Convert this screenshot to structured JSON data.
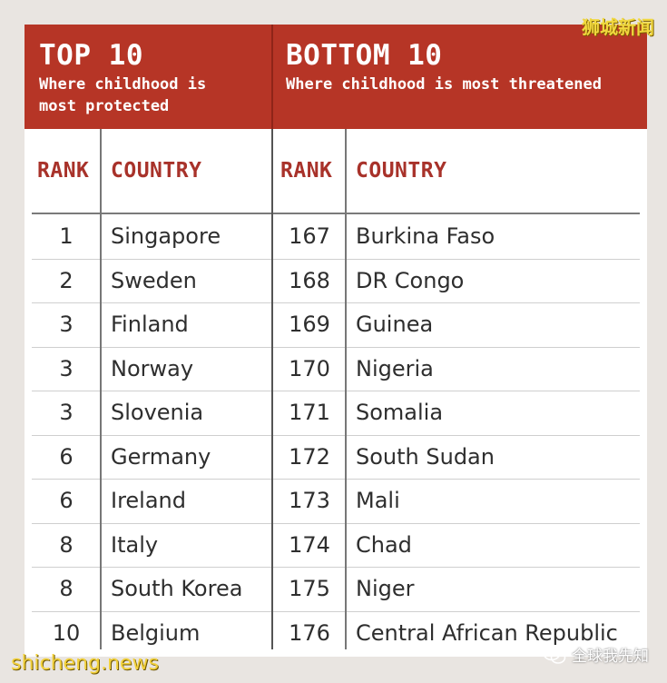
{
  "left_panel": {
    "title": "TOP 10",
    "subtitle_line1": "Where childhood is",
    "subtitle_line2": "most protected",
    "rank_header": "RANK",
    "country_header": "COUNTRY"
  },
  "right_panel": {
    "title": "BOTTOM 10",
    "subtitle": "Where childhood is most threatened",
    "rank_header": "RANK",
    "country_header": "COUNTRY"
  },
  "rows": [
    {
      "top_rank": "1",
      "top_country": "Singapore",
      "bottom_rank": "167",
      "bottom_country": "Burkina Faso"
    },
    {
      "top_rank": "2",
      "top_country": "Sweden",
      "bottom_rank": "168",
      "bottom_country": "DR Congo"
    },
    {
      "top_rank": "3",
      "top_country": "Finland",
      "bottom_rank": "169",
      "bottom_country": "Guinea"
    },
    {
      "top_rank": "3",
      "top_country": "Norway",
      "bottom_rank": "170",
      "bottom_country": "Nigeria"
    },
    {
      "top_rank": "3",
      "top_country": "Slovenia",
      "bottom_rank": "171",
      "bottom_country": "Somalia"
    },
    {
      "top_rank": "6",
      "top_country": "Germany",
      "bottom_rank": "172",
      "bottom_country": "South Sudan"
    },
    {
      "top_rank": "6",
      "top_country": "Ireland",
      "bottom_rank": "173",
      "bottom_country": "Mali"
    },
    {
      "top_rank": "8",
      "top_country": "Italy",
      "bottom_rank": "174",
      "bottom_country": "Chad"
    },
    {
      "top_rank": "8",
      "top_country": "South Korea",
      "bottom_rank": "175",
      "bottom_country": "Niger"
    },
    {
      "top_rank": "10",
      "top_country": "Belgium",
      "bottom_rank": "176",
      "bottom_country": "Central African Republic"
    }
  ],
  "watermarks": {
    "top_right": "狮城新闻",
    "bottom_left": "shicheng.news",
    "bottom_right": "全球我先知"
  },
  "colors": {
    "header_bg": "#b63526",
    "column_header_text": "#a8322a",
    "page_bg": "#e9e5e1"
  }
}
